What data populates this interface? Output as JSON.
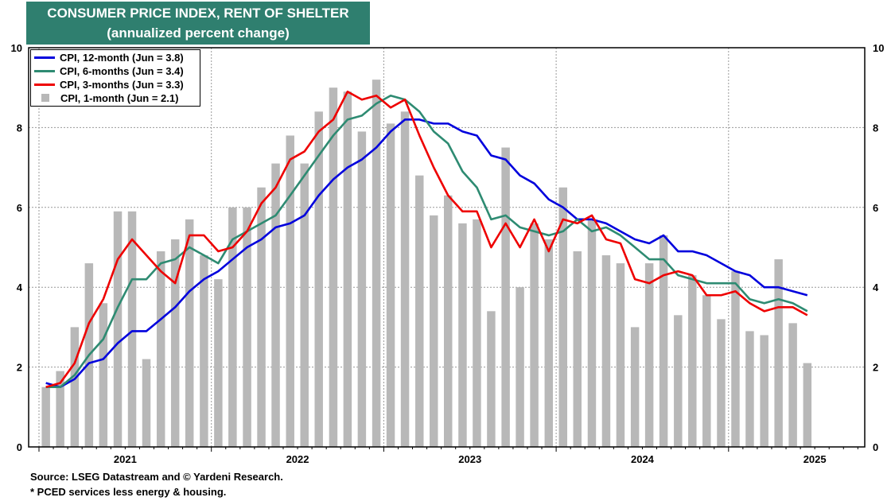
{
  "title": {
    "line1": "CONSUMER PRICE INDEX, RENT OF SHELTER",
    "line2": "(annualized percent change)"
  },
  "footnotes": {
    "source": "Source: LSEG Datastream and © Yardeni Research.",
    "note": "* PCED services less energy & housing."
  },
  "legend": {
    "items": [
      {
        "label": "CPI, 12-month (Jun = 3.8)",
        "color": "#0000dd",
        "kind": "line"
      },
      {
        "label": "CPI, 6-months (Jun = 3.4)",
        "color": "#2e8b72",
        "kind": "line"
      },
      {
        "label": "CPI, 3-months (Jun = 3.3)",
        "color": "#ee0000",
        "kind": "line"
      },
      {
        "label": "CPI, 1-month (Jun = 2.1)",
        "color": "#b8b8b8",
        "kind": "bar"
      }
    ]
  },
  "chart_data": {
    "type": "bar",
    "ylim": [
      0,
      10
    ],
    "yticks": [
      0,
      2,
      4,
      6,
      8,
      10
    ],
    "xlim": [
      2020.9,
      2025.75
    ],
    "x_tick_labels": [
      "2021",
      "2022",
      "2023",
      "2024",
      "2025"
    ],
    "grid": true,
    "legend_position": "top-left",
    "series": [
      {
        "name": "CPI, 1-month (Jun = 2.1)",
        "kind": "bar",
        "color": "#b8b8b8",
        "x": [
          2021.0,
          2021.083,
          2021.167,
          2021.25,
          2021.333,
          2021.417,
          2021.5,
          2021.583,
          2021.667,
          2021.75,
          2021.833,
          2021.917,
          2022.0,
          2022.083,
          2022.167,
          2022.25,
          2022.333,
          2022.417,
          2022.5,
          2022.583,
          2022.667,
          2022.75,
          2022.833,
          2022.917,
          2023.0,
          2023.083,
          2023.167,
          2023.25,
          2023.333,
          2023.417,
          2023.5,
          2023.583,
          2023.667,
          2023.75,
          2023.833,
          2023.917,
          2024.0,
          2024.083,
          2024.167,
          2024.25,
          2024.333,
          2024.417,
          2024.5,
          2024.583,
          2024.667,
          2024.75,
          2024.833,
          2024.917,
          2025.0,
          2025.083,
          2025.167,
          2025.25,
          2025.333,
          2025.417
        ],
        "values": [
          1.5,
          1.9,
          3.0,
          4.6,
          3.6,
          5.9,
          5.9,
          2.2,
          4.9,
          5.2,
          5.7,
          4.8,
          4.2,
          6.0,
          6.0,
          6.5,
          7.1,
          7.8,
          7.1,
          8.4,
          9.0,
          8.9,
          7.9,
          9.2,
          8.1,
          8.4,
          6.8,
          5.8,
          6.3,
          5.6,
          5.7,
          3.4,
          7.5,
          4.0,
          5.6,
          5.2,
          6.5,
          4.9,
          5.7,
          4.8,
          4.6,
          3.0,
          4.6,
          5.3,
          3.3,
          4.3,
          3.8,
          3.2,
          4.4,
          2.9,
          2.8,
          4.7,
          3.1,
          2.1
        ]
      },
      {
        "name": "CPI, 12-month (Jun = 3.8)",
        "kind": "line",
        "color": "#0000dd",
        "x": [
          2021.0,
          2021.083,
          2021.167,
          2021.25,
          2021.333,
          2021.417,
          2021.5,
          2021.583,
          2021.667,
          2021.75,
          2021.833,
          2021.917,
          2022.0,
          2022.083,
          2022.167,
          2022.25,
          2022.333,
          2022.417,
          2022.5,
          2022.583,
          2022.667,
          2022.75,
          2022.833,
          2022.917,
          2023.0,
          2023.083,
          2023.167,
          2023.25,
          2023.333,
          2023.417,
          2023.5,
          2023.583,
          2023.667,
          2023.75,
          2023.833,
          2023.917,
          2024.0,
          2024.083,
          2024.167,
          2024.25,
          2024.333,
          2024.417,
          2024.5,
          2024.583,
          2024.667,
          2024.75,
          2024.833,
          2024.917,
          2025.0,
          2025.083,
          2025.167,
          2025.25,
          2025.333,
          2025.417
        ],
        "values": [
          1.6,
          1.5,
          1.7,
          2.1,
          2.2,
          2.6,
          2.9,
          2.9,
          3.2,
          3.5,
          3.9,
          4.2,
          4.4,
          4.7,
          5.0,
          5.2,
          5.5,
          5.6,
          5.8,
          6.3,
          6.7,
          7.0,
          7.2,
          7.5,
          7.9,
          8.2,
          8.2,
          8.1,
          8.1,
          7.9,
          7.8,
          7.3,
          7.2,
          6.8,
          6.6,
          6.2,
          6.0,
          5.7,
          5.7,
          5.6,
          5.4,
          5.2,
          5.1,
          5.3,
          4.9,
          4.9,
          4.8,
          4.6,
          4.4,
          4.3,
          4.0,
          4.0,
          3.9,
          3.8
        ]
      },
      {
        "name": "CPI, 6-months (Jun = 3.4)",
        "kind": "line",
        "color": "#2e8b72",
        "x": [
          2021.0,
          2021.083,
          2021.167,
          2021.25,
          2021.333,
          2021.417,
          2021.5,
          2021.583,
          2021.667,
          2021.75,
          2021.833,
          2021.917,
          2022.0,
          2022.083,
          2022.167,
          2022.25,
          2022.333,
          2022.417,
          2022.5,
          2022.583,
          2022.667,
          2022.75,
          2022.833,
          2022.917,
          2023.0,
          2023.083,
          2023.167,
          2023.25,
          2023.333,
          2023.417,
          2023.5,
          2023.583,
          2023.667,
          2023.75,
          2023.833,
          2023.917,
          2024.0,
          2024.083,
          2024.167,
          2024.25,
          2024.333,
          2024.417,
          2024.5,
          2024.583,
          2024.667,
          2024.75,
          2024.833,
          2024.917,
          2025.0,
          2025.083,
          2025.167,
          2025.25,
          2025.333,
          2025.417
        ],
        "values": [
          1.5,
          1.5,
          1.8,
          2.3,
          2.7,
          3.5,
          4.2,
          4.2,
          4.6,
          4.7,
          5.0,
          4.8,
          4.6,
          5.2,
          5.4,
          5.6,
          5.8,
          6.3,
          6.8,
          7.3,
          7.8,
          8.2,
          8.3,
          8.6,
          8.8,
          8.7,
          8.4,
          7.9,
          7.6,
          6.9,
          6.5,
          5.7,
          5.8,
          5.5,
          5.4,
          5.3,
          5.4,
          5.7,
          5.4,
          5.5,
          5.3,
          5.0,
          4.7,
          4.7,
          4.3,
          4.2,
          4.1,
          4.1,
          4.1,
          3.7,
          3.6,
          3.7,
          3.6,
          3.4
        ]
      },
      {
        "name": "CPI, 3-months (Jun = 3.3)",
        "kind": "line",
        "color": "#ee0000",
        "x": [
          2021.0,
          2021.083,
          2021.167,
          2021.25,
          2021.333,
          2021.417,
          2021.5,
          2021.583,
          2021.667,
          2021.75,
          2021.833,
          2021.917,
          2022.0,
          2022.083,
          2022.167,
          2022.25,
          2022.333,
          2022.417,
          2022.5,
          2022.583,
          2022.667,
          2022.75,
          2022.833,
          2022.917,
          2023.0,
          2023.083,
          2023.167,
          2023.25,
          2023.333,
          2023.417,
          2023.5,
          2023.583,
          2023.667,
          2023.75,
          2023.833,
          2023.917,
          2024.0,
          2024.083,
          2024.167,
          2024.25,
          2024.333,
          2024.417,
          2024.5,
          2024.583,
          2024.667,
          2024.75,
          2024.833,
          2024.917,
          2025.0,
          2025.083,
          2025.167,
          2025.25,
          2025.333,
          2025.417
        ],
        "values": [
          1.5,
          1.6,
          2.1,
          3.1,
          3.7,
          4.7,
          5.2,
          4.8,
          4.4,
          4.1,
          5.3,
          5.3,
          4.9,
          5.0,
          5.4,
          6.1,
          6.5,
          7.2,
          7.4,
          7.9,
          8.2,
          8.9,
          8.7,
          8.8,
          8.5,
          8.7,
          7.8,
          7.0,
          6.3,
          5.9,
          5.9,
          5.0,
          5.6,
          5.0,
          5.7,
          4.9,
          5.7,
          5.6,
          5.8,
          5.2,
          5.1,
          4.2,
          4.1,
          4.3,
          4.4,
          4.3,
          3.8,
          3.8,
          3.9,
          3.6,
          3.4,
          3.5,
          3.5,
          3.3
        ]
      }
    ]
  }
}
